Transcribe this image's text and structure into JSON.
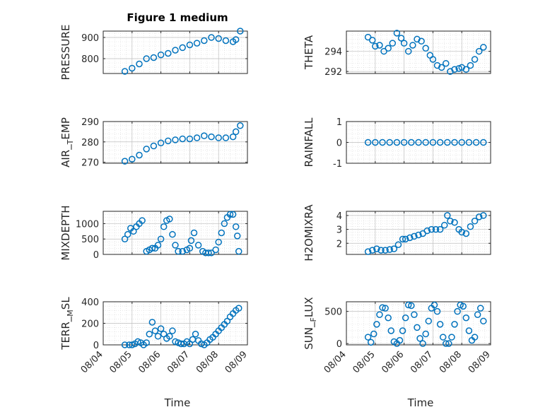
{
  "figure": {
    "title": "Figure 1 medium",
    "xlabel": "Time",
    "x_tick_labels": [
      "08/04",
      "08/05",
      "08/06",
      "08/07",
      "08/08",
      "08/09"
    ],
    "marker_color": "#0072BD"
  },
  "chart_data": [
    {
      "type": "scatter",
      "ylabel": "PRESSURE",
      "xlim": [
        0,
        5
      ],
      "ylim": [
        730,
        930
      ],
      "yticks": [
        800,
        900
      ],
      "ytick_labels": [
        "800",
        "900"
      ],
      "x": [
        0.75,
        1.0,
        1.25,
        1.5,
        1.75,
        2.0,
        2.25,
        2.5,
        2.75,
        3.0,
        3.25,
        3.5,
        3.75,
        4.0,
        4.25,
        4.5,
        4.6,
        4.75
      ],
      "y": [
        740,
        755,
        775,
        800,
        805,
        818,
        825,
        840,
        852,
        865,
        873,
        885,
        900,
        895,
        885,
        880,
        890,
        930
      ]
    },
    {
      "type": "scatter",
      "ylabel": "THETA",
      "xlim": [
        0,
        5
      ],
      "ylim": [
        291.8,
        296
      ],
      "yticks": [
        292,
        294
      ],
      "ytick_labels": [
        "292",
        "294"
      ],
      "x": [
        0.75,
        0.9,
        1.0,
        1.15,
        1.3,
        1.45,
        1.6,
        1.75,
        1.9,
        2.0,
        2.15,
        2.3,
        2.45,
        2.6,
        2.75,
        2.9,
        3.0,
        3.15,
        3.3,
        3.45,
        3.6,
        3.75,
        3.9,
        4.0,
        4.15,
        4.3,
        4.45,
        4.6,
        4.75
      ],
      "y": [
        295.4,
        295.1,
        294.5,
        294.6,
        294.0,
        294.3,
        294.8,
        295.8,
        295.3,
        294.8,
        294.0,
        294.6,
        295.2,
        295.0,
        294.3,
        293.6,
        293.2,
        292.6,
        292.4,
        292.8,
        292.0,
        292.2,
        292.3,
        292.4,
        292.2,
        292.6,
        293.2,
        294.0,
        294.4
      ]
    },
    {
      "type": "scatter",
      "ylabel": "AIR_TEMP",
      "xlim": [
        0,
        5
      ],
      "ylim": [
        269.5,
        290
      ],
      "yticks": [
        270,
        280,
        290
      ],
      "ytick_labels": [
        "270",
        "280",
        "290"
      ],
      "x": [
        0.75,
        1.0,
        1.25,
        1.5,
        1.75,
        2.0,
        2.25,
        2.5,
        2.75,
        3.0,
        3.25,
        3.5,
        3.75,
        4.0,
        4.25,
        4.5,
        4.6,
        4.75
      ],
      "y": [
        270.5,
        271.5,
        273.5,
        276.5,
        278.0,
        279.5,
        280.5,
        281.0,
        281.5,
        281.5,
        282.0,
        283.0,
        282.5,
        282.0,
        282.0,
        282.5,
        285.0,
        288.0
      ]
    },
    {
      "type": "scatter",
      "ylabel": "RAINFALL",
      "xlim": [
        0,
        5
      ],
      "ylim": [
        -1,
        1
      ],
      "yticks": [
        -1,
        0,
        1
      ],
      "ytick_labels": [
        "-1",
        "0",
        "1"
      ],
      "x": [
        0.75,
        1.0,
        1.25,
        1.5,
        1.75,
        2.0,
        2.25,
        2.5,
        2.75,
        3.0,
        3.25,
        3.5,
        3.75,
        4.0,
        4.25,
        4.5,
        4.75
      ],
      "y": [
        0,
        0,
        0,
        0,
        0,
        0,
        0,
        0,
        0,
        0,
        0,
        0,
        0,
        0,
        0,
        0,
        0
      ]
    },
    {
      "type": "scatter",
      "ylabel": "MIXDEPTH",
      "xlim": [
        0,
        5
      ],
      "ylim": [
        0,
        1400
      ],
      "yticks": [
        0,
        500,
        1000
      ],
      "ytick_labels": [
        "0",
        "500",
        "1000"
      ],
      "x": [
        0.75,
        0.85,
        0.95,
        1.05,
        1.15,
        1.25,
        1.35,
        1.5,
        1.6,
        1.7,
        1.8,
        1.9,
        2.0,
        2.1,
        2.2,
        2.3,
        2.4,
        2.5,
        2.6,
        2.75,
        2.9,
        3.0,
        3.05,
        3.15,
        3.3,
        3.45,
        3.55,
        3.65,
        3.75,
        3.9,
        4.0,
        4.1,
        4.2,
        4.3,
        4.4,
        4.5,
        4.6,
        4.65,
        4.7
      ],
      "y": [
        500,
        650,
        850,
        750,
        900,
        1000,
        1100,
        100,
        150,
        200,
        200,
        300,
        500,
        900,
        1100,
        1150,
        650,
        300,
        100,
        100,
        150,
        200,
        450,
        700,
        300,
        100,
        50,
        50,
        50,
        150,
        400,
        700,
        1000,
        1200,
        1300,
        1300,
        900,
        600,
        100
      ]
    },
    {
      "type": "scatter",
      "ylabel": "H2OMIXRA",
      "xlim": [
        0,
        5
      ],
      "ylim": [
        1.2,
        4.3
      ],
      "yticks": [
        2,
        3,
        4
      ],
      "ytick_labels": [
        "2",
        "3",
        "4"
      ],
      "x": [
        0.75,
        0.9,
        1.05,
        1.2,
        1.35,
        1.5,
        1.65,
        1.8,
        1.95,
        2.05,
        2.2,
        2.35,
        2.5,
        2.65,
        2.8,
        2.95,
        3.1,
        3.25,
        3.4,
        3.5,
        3.6,
        3.75,
        3.9,
        4.0,
        4.15,
        4.3,
        4.45,
        4.6,
        4.75
      ],
      "y": [
        1.4,
        1.5,
        1.6,
        1.5,
        1.5,
        1.55,
        1.6,
        1.9,
        2.3,
        2.3,
        2.4,
        2.5,
        2.6,
        2.7,
        2.9,
        3.0,
        3.0,
        3.0,
        3.3,
        4.0,
        3.6,
        3.5,
        3.0,
        2.8,
        2.7,
        3.2,
        3.6,
        3.9,
        4.0
      ]
    },
    {
      "type": "scatter",
      "ylabel": "TERR_MSL",
      "xlim": [
        0,
        5
      ],
      "ylim": [
        0,
        400
      ],
      "yticks": [
        0,
        200,
        400
      ],
      "ytick_labels": [
        "0",
        "200",
        "400"
      ],
      "x": [
        0.75,
        0.9,
        1.0,
        1.1,
        1.2,
        1.3,
        1.4,
        1.5,
        1.6,
        1.7,
        1.8,
        1.9,
        2.0,
        2.1,
        2.2,
        2.3,
        2.4,
        2.5,
        2.6,
        2.7,
        2.8,
        2.9,
        3.0,
        3.1,
        3.2,
        3.3,
        3.4,
        3.5,
        3.6,
        3.7,
        3.8,
        3.9,
        4.0,
        4.1,
        4.2,
        4.3,
        4.4,
        4.5,
        4.6,
        4.7
      ],
      "y": [
        0,
        0,
        0,
        10,
        30,
        20,
        0,
        20,
        100,
        210,
        130,
        80,
        150,
        100,
        60,
        80,
        130,
        30,
        20,
        10,
        10,
        30,
        10,
        50,
        100,
        40,
        10,
        0,
        20,
        50,
        70,
        100,
        130,
        160,
        190,
        220,
        260,
        290,
        320,
        340
      ]
    },
    {
      "type": "scatter",
      "ylabel": "SUN_FLUX",
      "xlim": [
        0,
        5
      ],
      "ylim": [
        -20,
        650
      ],
      "yticks": [
        0,
        500
      ],
      "ytick_labels": [
        "0",
        "500"
      ],
      "x": [
        0.75,
        0.85,
        0.95,
        1.05,
        1.15,
        1.25,
        1.35,
        1.45,
        1.55,
        1.65,
        1.75,
        1.85,
        1.95,
        2.05,
        2.15,
        2.25,
        2.35,
        2.45,
        2.55,
        2.65,
        2.75,
        2.85,
        2.95,
        3.05,
        3.15,
        3.25,
        3.35,
        3.45,
        3.55,
        3.65,
        3.75,
        3.85,
        3.95,
        4.05,
        4.15,
        4.25,
        4.35,
        4.45,
        4.55,
        4.65,
        4.75
      ],
      "y": [
        100,
        20,
        150,
        300,
        450,
        560,
        550,
        400,
        200,
        30,
        0,
        50,
        200,
        400,
        600,
        590,
        450,
        250,
        80,
        0,
        150,
        350,
        550,
        600,
        500,
        300,
        100,
        0,
        0,
        100,
        300,
        500,
        600,
        580,
        400,
        200,
        50,
        100,
        450,
        550,
        350
      ]
    }
  ]
}
